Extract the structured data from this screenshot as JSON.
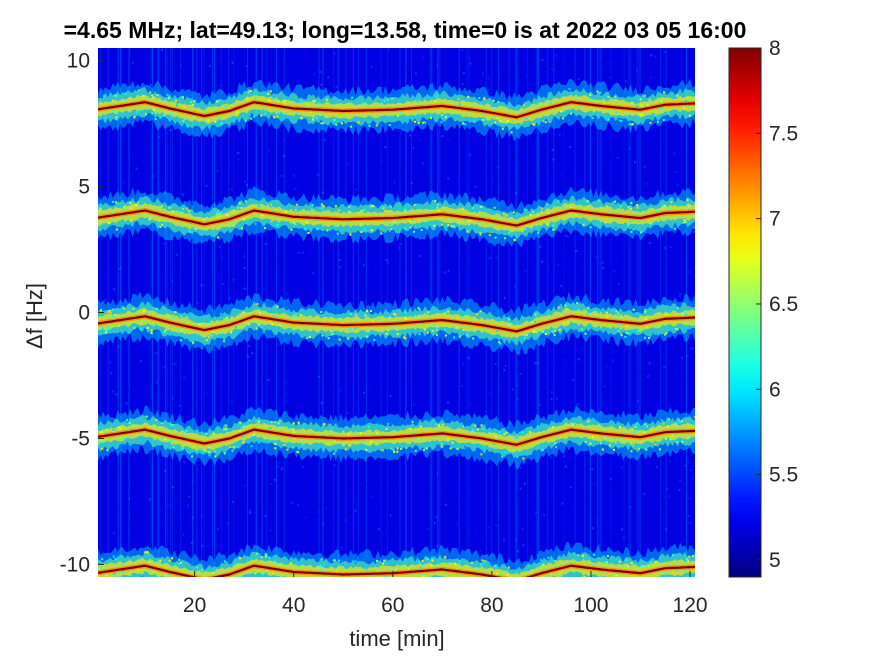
{
  "chart_data": {
    "type": "heatmap",
    "title": "=4.65 MHz;  lat=49.13; long=13.58, time=0 is at 2022 03 05 16:00",
    "xlabel": "time [min]",
    "ylabel": "Δf [Hz]",
    "xlim": [
      0.5,
      121
    ],
    "ylim": [
      -10.5,
      10.5
    ],
    "x_ticks": [
      20,
      40,
      60,
      80,
      100,
      120
    ],
    "x_tick_labels": [
      "20",
      "40",
      "60",
      "80",
      "100",
      "120"
    ],
    "y_ticks": [
      -10,
      -5,
      0,
      5,
      10
    ],
    "y_tick_labels": [
      "-10",
      "-5",
      "0",
      "5",
      "10"
    ],
    "colormap": "jet",
    "clim": [
      4.9,
      8
    ],
    "colorbar_ticks": [
      5,
      5.5,
      6,
      6.5,
      7,
      7.5,
      8
    ],
    "colorbar_tick_labels": [
      "5",
      "5.5",
      "6",
      "6.5",
      "7",
      "7.5",
      "8"
    ],
    "background_level": 5.2,
    "bands": [
      {
        "offset_hz": 8.0,
        "peak_level": 8.0
      },
      {
        "offset_hz": 3.7,
        "peak_level": 8.0
      },
      {
        "offset_hz": -0.5,
        "peak_level": 8.0
      },
      {
        "offset_hz": -5.0,
        "peak_level": 8.0
      },
      {
        "offset_hz": -10.4,
        "peak_level": 8.0
      }
    ],
    "drift_time_min": [
      0,
      10,
      15,
      22,
      27,
      32,
      40,
      50,
      60,
      70,
      78,
      85,
      90,
      96,
      102,
      110,
      115,
      121
    ],
    "drift_hz": [
      0.05,
      0.35,
      0.1,
      -0.2,
      0.0,
      0.35,
      0.1,
      0.0,
      0.05,
      0.2,
      0.0,
      -0.25,
      0.05,
      0.35,
      0.2,
      0.05,
      0.25,
      0.3
    ]
  }
}
